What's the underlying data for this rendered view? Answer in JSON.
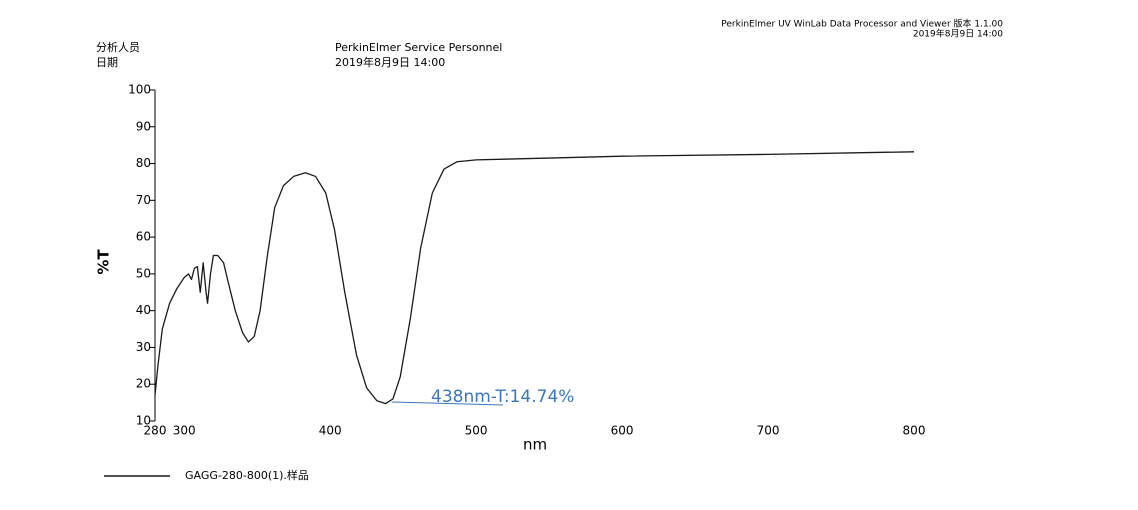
{
  "header": {
    "software": "PerkinElmer UV WinLab Data Processor and Viewer 版本 1.1.00",
    "software_date": "2019年8月9日 14:00",
    "analyst_label": "分析人员",
    "date_label": "日期",
    "analyst": "PerkinElmer Service Personnel",
    "date": "2019年8月9日 14:00"
  },
  "chart_data": {
    "type": "line",
    "xlabel": "nm",
    "ylabel": "%T",
    "annotation": "438nm-T:14.74%",
    "xlim": [
      280,
      800
    ],
    "ylim": [
      10,
      100
    ],
    "xticks": [
      280,
      300,
      400,
      500,
      600,
      700,
      800
    ],
    "yticks": [
      10,
      20,
      30,
      40,
      50,
      60,
      70,
      80,
      90,
      100
    ],
    "grid": false,
    "x": [
      280,
      282,
      285,
      290,
      295,
      300,
      303,
      305,
      307,
      309,
      311,
      313,
      315,
      316,
      318,
      320,
      323,
      327,
      330,
      335,
      340,
      344,
      348,
      352,
      357,
      362,
      368,
      375,
      383,
      390,
      397,
      403,
      410,
      418,
      425,
      432,
      438,
      443,
      448,
      455,
      462,
      470,
      478,
      487,
      500,
      550,
      600,
      700,
      800
    ],
    "series": [
      {
        "name": "GAGG-280-800(1).样品",
        "color": "#1a1a1a",
        "values": [
          17,
          25,
          35,
          42,
          46,
          49,
          50,
          48.5,
          51.5,
          52,
          45,
          53,
          45,
          42,
          50,
          55,
          55,
          53,
          48,
          40,
          34,
          31.5,
          33,
          40,
          55,
          68,
          74,
          76.5,
          77.5,
          76.5,
          72,
          62,
          45,
          28,
          19,
          15.5,
          14.74,
          16,
          22,
          38,
          57,
          72,
          78.5,
          80.5,
          81,
          81.5,
          82,
          82.5,
          83.2
        ]
      }
    ]
  }
}
